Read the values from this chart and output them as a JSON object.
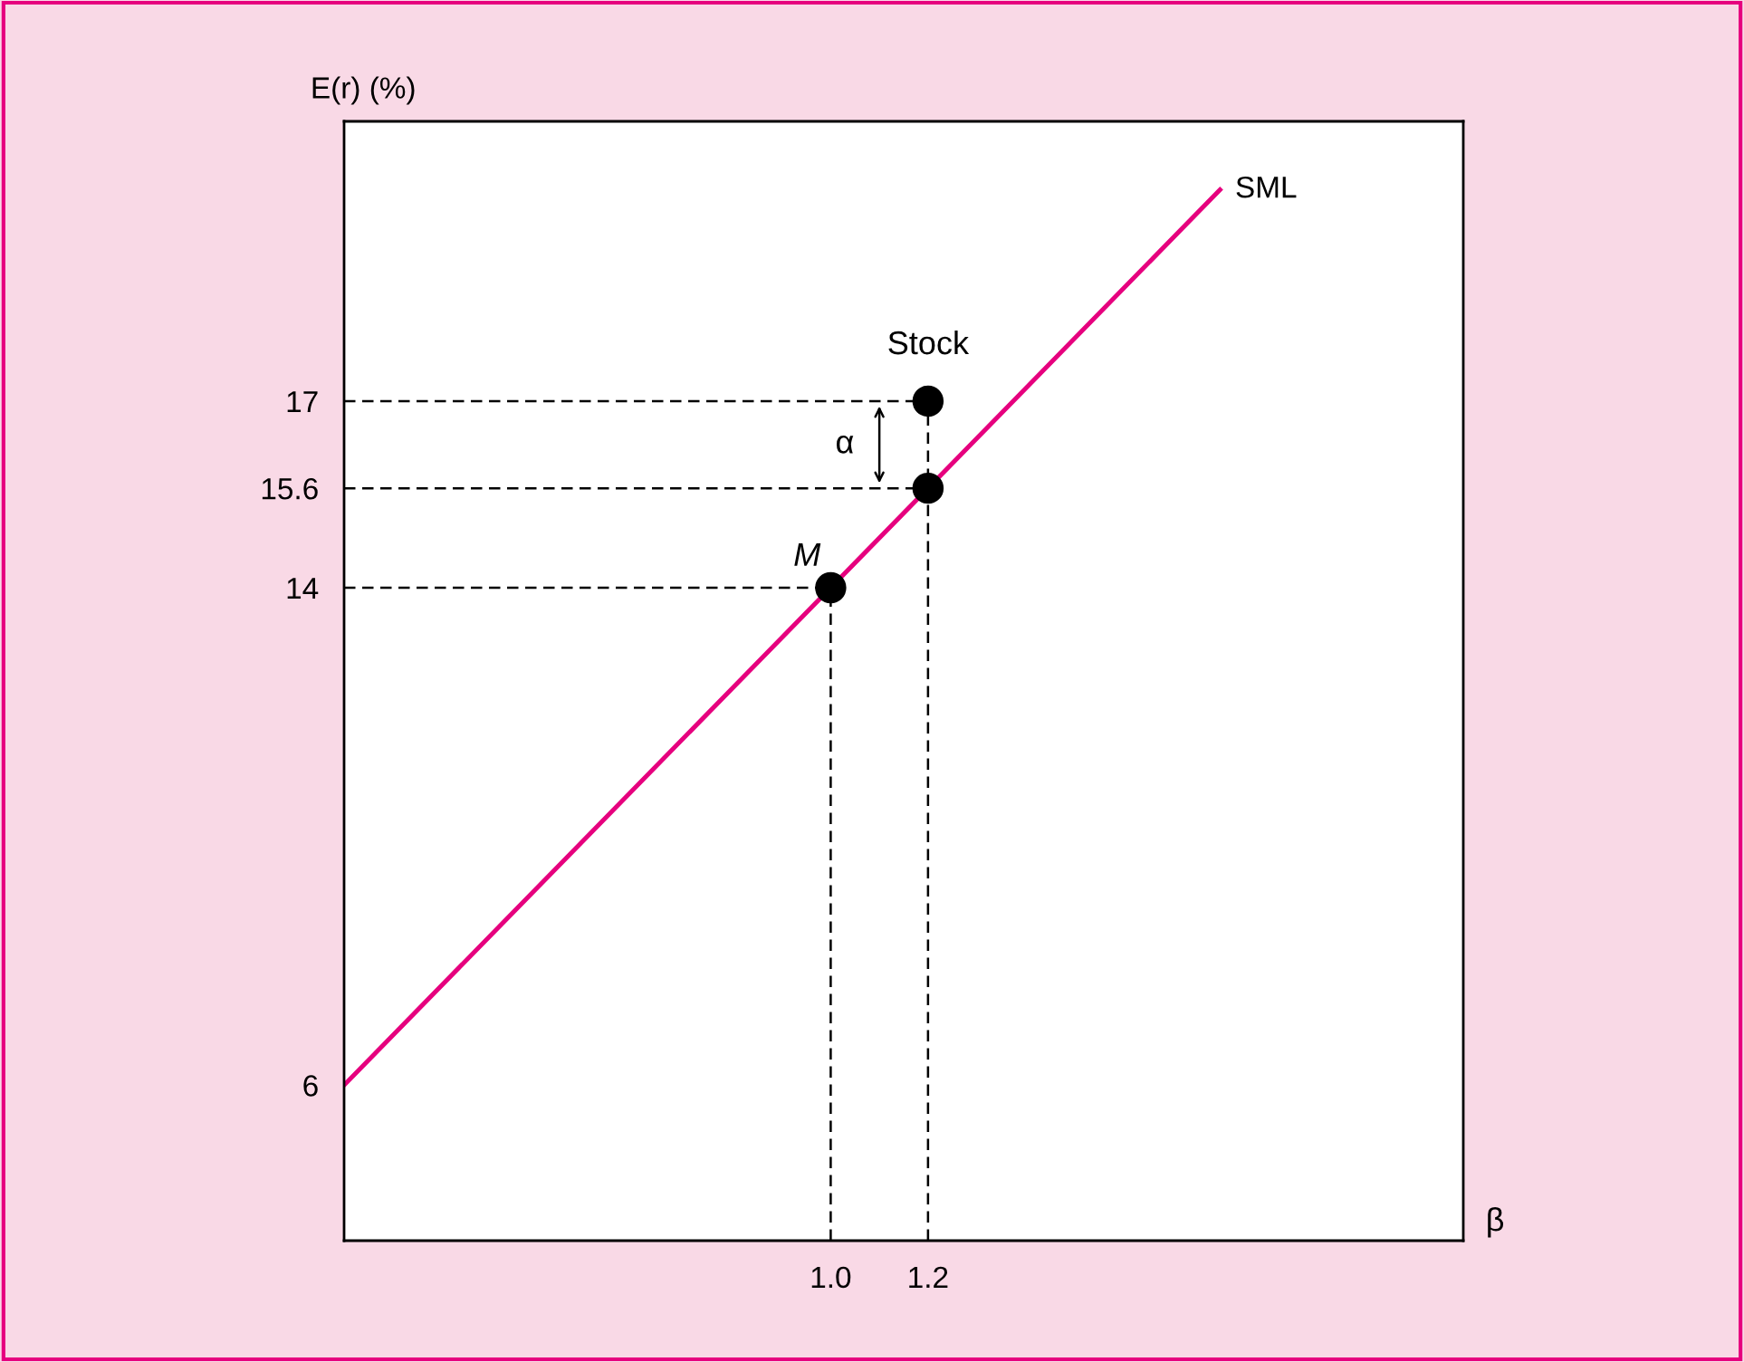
{
  "chart_data": {
    "type": "line",
    "xlabel": "β",
    "ylabel": "E(r) (%)",
    "xlim": [
      0,
      2.3
    ],
    "ylim": [
      3.5,
      21.5
    ],
    "xticks": [
      {
        "value": 1.0,
        "label": "1.0"
      },
      {
        "value": 1.2,
        "label": "1.2"
      }
    ],
    "yticks": [
      6,
      14,
      15.6,
      17
    ],
    "grid": false,
    "legend": false,
    "series": [
      {
        "name": "SML",
        "color": "#e6007e",
        "line_style": "solid",
        "x": [
          0,
          1.8
        ],
        "values": [
          6,
          20.4
        ]
      },
      {
        "type": "line",
        "color": "#000000",
        "line_style": "dashed",
        "x": [
          0,
          1.2
        ],
        "values": [
          17,
          17
        ]
      },
      {
        "type": "line",
        "color": "#000000",
        "line_style": "dashed",
        "x": [
          0,
          1.2
        ],
        "values": [
          15.6,
          15.6
        ]
      },
      {
        "type": "line",
        "color": "#000000",
        "line_style": "dashed",
        "x": [
          0,
          1.0
        ],
        "values": [
          14,
          14
        ]
      },
      {
        "type": "line",
        "color": "#000000",
        "line_style": "dashed",
        "x": [
          1.0,
          1.0
        ],
        "values": [
          3.5,
          14
        ]
      },
      {
        "type": "line",
        "color": "#000000",
        "line_style": "dashed",
        "x": [
          1.2,
          1.2
        ],
        "values": [
          3.5,
          17
        ]
      },
      {
        "type": "scatter",
        "color": "#000000",
        "marker": "circle",
        "x": [
          1.0,
          1.2,
          1.2
        ],
        "values": [
          14,
          15.6,
          17
        ]
      }
    ],
    "annotations": [
      {
        "text": "Stock",
        "x": 1.2,
        "y": 17
      },
      {
        "text": "M",
        "x": 1.0,
        "y": 14
      },
      "α"
    ]
  }
}
